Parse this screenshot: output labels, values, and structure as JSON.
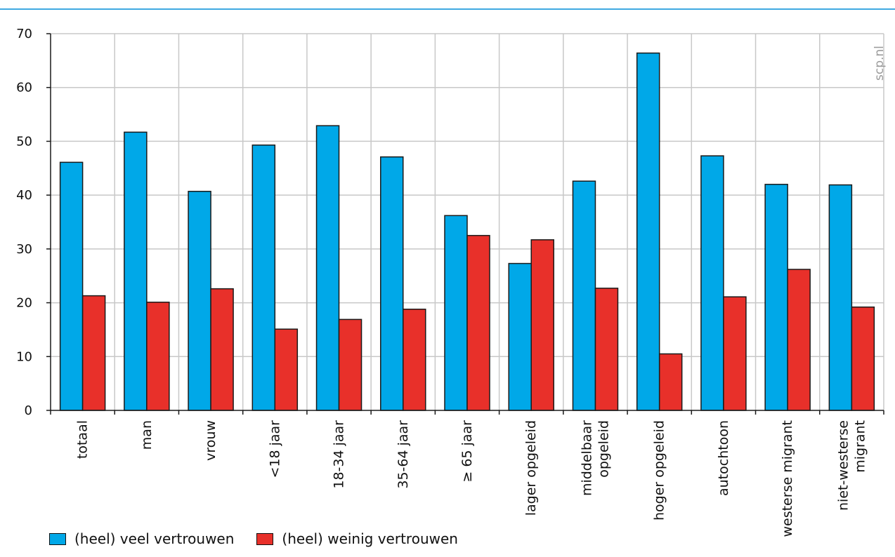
{
  "source_label": "scp.nl",
  "colors": {
    "series_veel": "#00a8e8",
    "series_weinig": "#e8302a",
    "grid": "#c8c8c8",
    "accent_rule": "#3fa9e1"
  },
  "chart_data": {
    "type": "bar",
    "categories": [
      "totaal",
      "man",
      "vrouw",
      "<18 jaar",
      "18-34 jaar",
      "35-64 jaar",
      "≥ 65 jaar",
      "lager opgeleid",
      "middelbaar opgeleid",
      "hoger opgeleid",
      "autochtoon",
      "westerse migrant",
      "niet-westerse migrant"
    ],
    "category_lines": [
      [
        "totaal"
      ],
      [
        "man"
      ],
      [
        "vrouw"
      ],
      [
        "<18 jaar"
      ],
      [
        "18-34 jaar"
      ],
      [
        "35-64 jaar"
      ],
      [
        "≥ 65 jaar"
      ],
      [
        "lager opgeleid"
      ],
      [
        "middelbaar",
        "opgeleid"
      ],
      [
        "hoger opgeleid"
      ],
      [
        "autochtoon"
      ],
      [
        "westerse migrant"
      ],
      [
        "niet-westerse",
        "migrant"
      ]
    ],
    "series": [
      {
        "name": "(heel) veel vertrouwen",
        "values": [
          46.1,
          51.7,
          40.7,
          49.3,
          52.9,
          47.1,
          36.2,
          27.3,
          42.6,
          66.4,
          47.3,
          42.0,
          41.9
        ]
      },
      {
        "name": "(heel) weinig vertrouwen",
        "values": [
          21.3,
          20.1,
          22.6,
          15.1,
          16.9,
          18.8,
          32.5,
          31.7,
          22.7,
          10.5,
          21.1,
          26.2,
          19.2
        ]
      }
    ],
    "yticks": [
      0,
      10,
      20,
      30,
      40,
      50,
      60,
      70
    ],
    "ylim": [
      0,
      70
    ],
    "grid": true,
    "legend_position": "bottom-left",
    "title": "",
    "xlabel": "",
    "ylabel": ""
  }
}
